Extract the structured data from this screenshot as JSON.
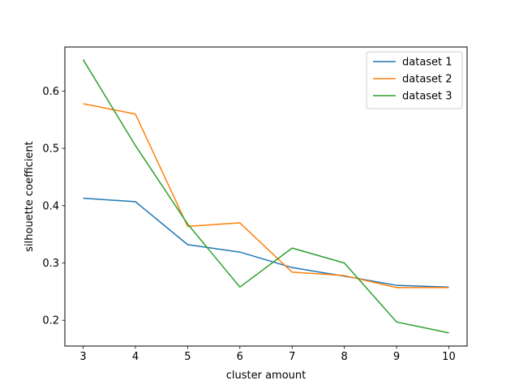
{
  "chart_data": {
    "type": "line",
    "title": "",
    "xlabel": "cluster amount",
    "ylabel": "silhouette coefficient",
    "x": [
      3,
      4,
      5,
      6,
      7,
      8,
      9,
      10
    ],
    "xticks": [
      "3",
      "4",
      "5",
      "6",
      "7",
      "8",
      "9",
      "10"
    ],
    "yticks": [
      "0.2",
      "0.3",
      "0.4",
      "0.5",
      "0.6"
    ],
    "ytick_values": [
      0.2,
      0.3,
      0.4,
      0.5,
      0.6
    ],
    "xlim": [
      2.65,
      10.35
    ],
    "ylim": [
      0.155,
      0.677
    ],
    "grid": false,
    "legend_position": "top-right",
    "series": [
      {
        "name": "dataset 1",
        "color": "#1f77b4",
        "values": [
          0.413,
          0.407,
          0.332,
          0.319,
          0.292,
          0.277,
          0.261,
          0.258
        ]
      },
      {
        "name": "dataset 2",
        "color": "#ff7f0e",
        "values": [
          0.578,
          0.56,
          0.364,
          0.37,
          0.284,
          0.278,
          0.257,
          0.257
        ]
      },
      {
        "name": "dataset 3",
        "color": "#2ca02c",
        "values": [
          0.655,
          0.505,
          0.368,
          0.258,
          0.326,
          0.3,
          0.197,
          0.178
        ]
      }
    ]
  }
}
